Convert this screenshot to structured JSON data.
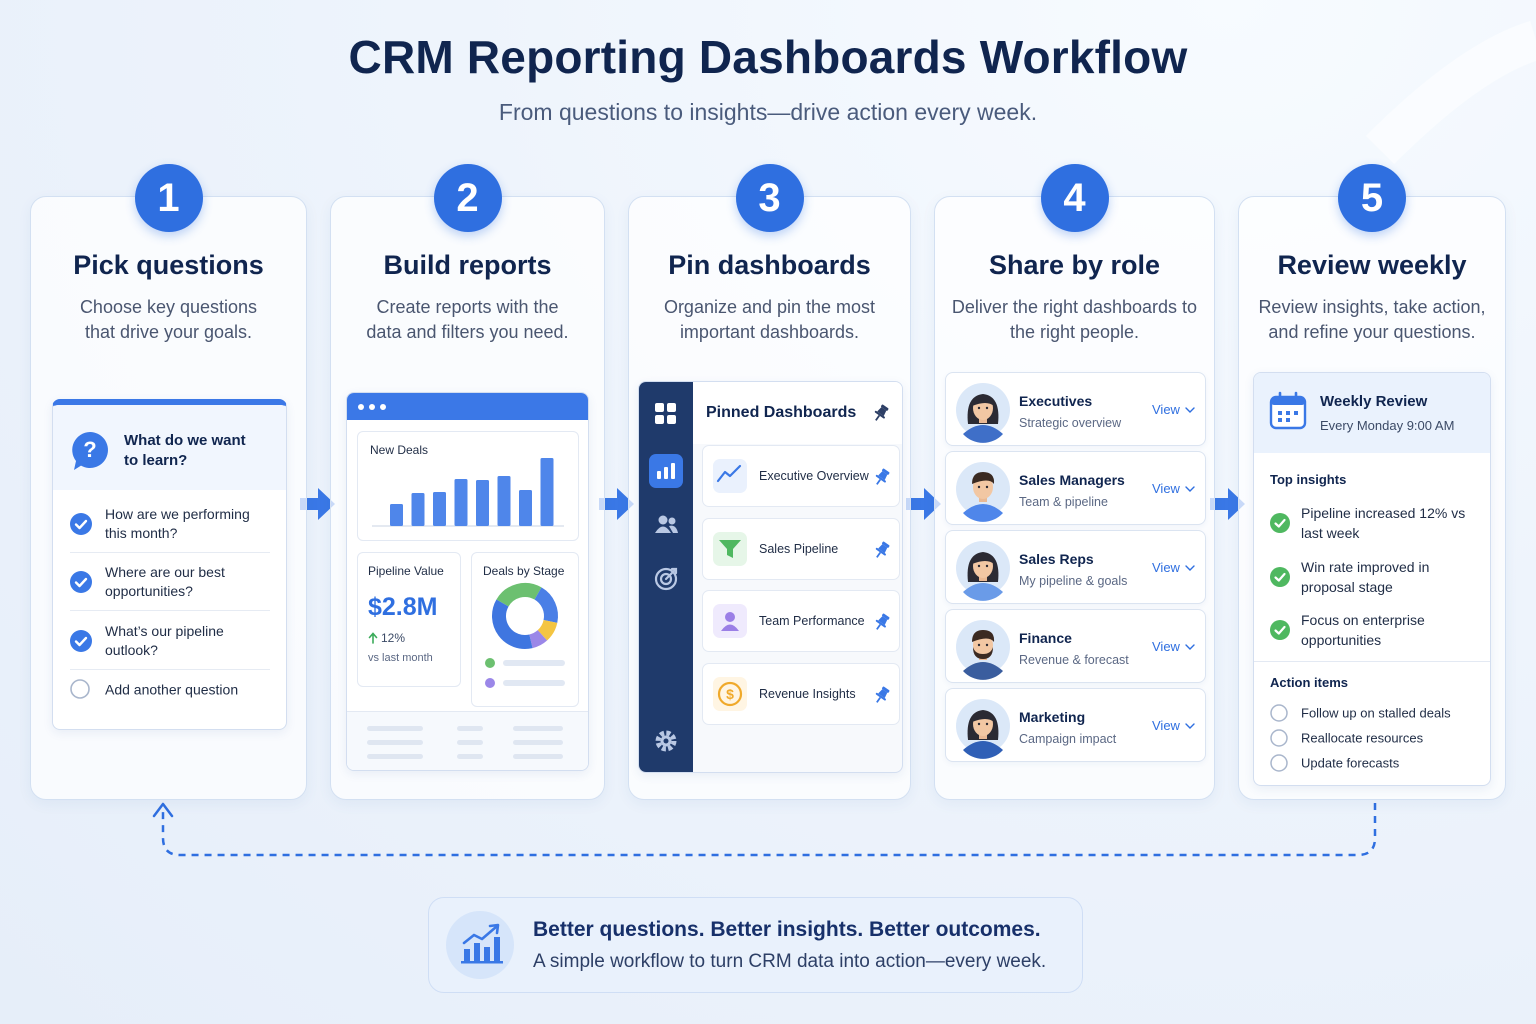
{
  "header": {
    "title": "CRM Reporting Dashboards Workflow",
    "subtitle": "From questions to insights—drive action every week."
  },
  "steps": [
    {
      "number": 1,
      "title": "Pick questions",
      "description": "Choose key questions that drive your goals.",
      "panel": {
        "heading": "What do we want to learn?",
        "questions": [
          {
            "text": "How are we performing this month?",
            "checked": true
          },
          {
            "text": "Where are our best opportunities?",
            "checked": true
          },
          {
            "text": "What’s our pipeline outlook?",
            "checked": true
          },
          {
            "text": "Add another question",
            "checked": false
          }
        ]
      }
    },
    {
      "number": 2,
      "title": "Build reports",
      "description": "Create reports with the data and filters you need.",
      "panel": {
        "new_deals": {
          "label": "New Deals",
          "bars": [
            22,
            33,
            34,
            47,
            46,
            50,
            36,
            68
          ],
          "color": "#4f86ea"
        },
        "pipeline_value": {
          "label": "Pipeline Value",
          "value": "$2.8M",
          "change": "12%",
          "comparison": "vs last month"
        },
        "deals_by_stage": {
          "label": "Deals by Stage",
          "segments": [
            {
              "value": 25,
              "color": "#6cc070"
            },
            {
              "value": 20,
              "color": "#4a7fe6"
            },
            {
              "value": 10,
              "color": "#f4c542"
            },
            {
              "value": 8,
              "color": "#9b87e8"
            },
            {
              "value": 37,
              "color": "#3f76e0"
            }
          ]
        }
      }
    },
    {
      "number": 3,
      "title": "Pin dashboards",
      "description": "Organize and pin the most important dashboards.",
      "panel": {
        "heading": "Pinned Dashboards",
        "items": [
          "Executive Overview",
          "Sales Pipeline",
          "Team Performance",
          "Revenue Insights"
        ]
      }
    },
    {
      "number": 4,
      "title": "Share by role",
      "description": "Deliver the right dashboards to the right people.",
      "panel": {
        "roles": [
          {
            "name": "Executives",
            "description": "Strategic overview",
            "action": "View"
          },
          {
            "name": "Sales Managers",
            "description": "Team & pipeline",
            "action": "View"
          },
          {
            "name": "Sales Reps",
            "description": "My pipeline & goals",
            "action": "View"
          },
          {
            "name": "Finance",
            "description": "Revenue & forecast",
            "action": "View"
          },
          {
            "name": "Marketing",
            "description": "Campaign impact",
            "action": "View"
          }
        ]
      }
    },
    {
      "number": 5,
      "title": "Review weekly",
      "description": "Review insights, take action, and refine your questions.",
      "panel": {
        "heading": "Weekly Review",
        "schedule": "Every Monday 9:00 AM",
        "insights_heading": "Top insights",
        "insights": [
          "Pipeline increased 12% vs last week",
          "Win rate improved in proposal stage",
          "Focus on enterprise opportunities"
        ],
        "actions_heading": "Action items",
        "actions": [
          "Follow up on stalled deals",
          "Reallocate resources",
          "Update forecasts"
        ]
      }
    }
  ],
  "footer": {
    "headline": "Better questions. Better insights. Better outcomes.",
    "text": "A simple workflow to turn CRM data into action—every week."
  }
}
